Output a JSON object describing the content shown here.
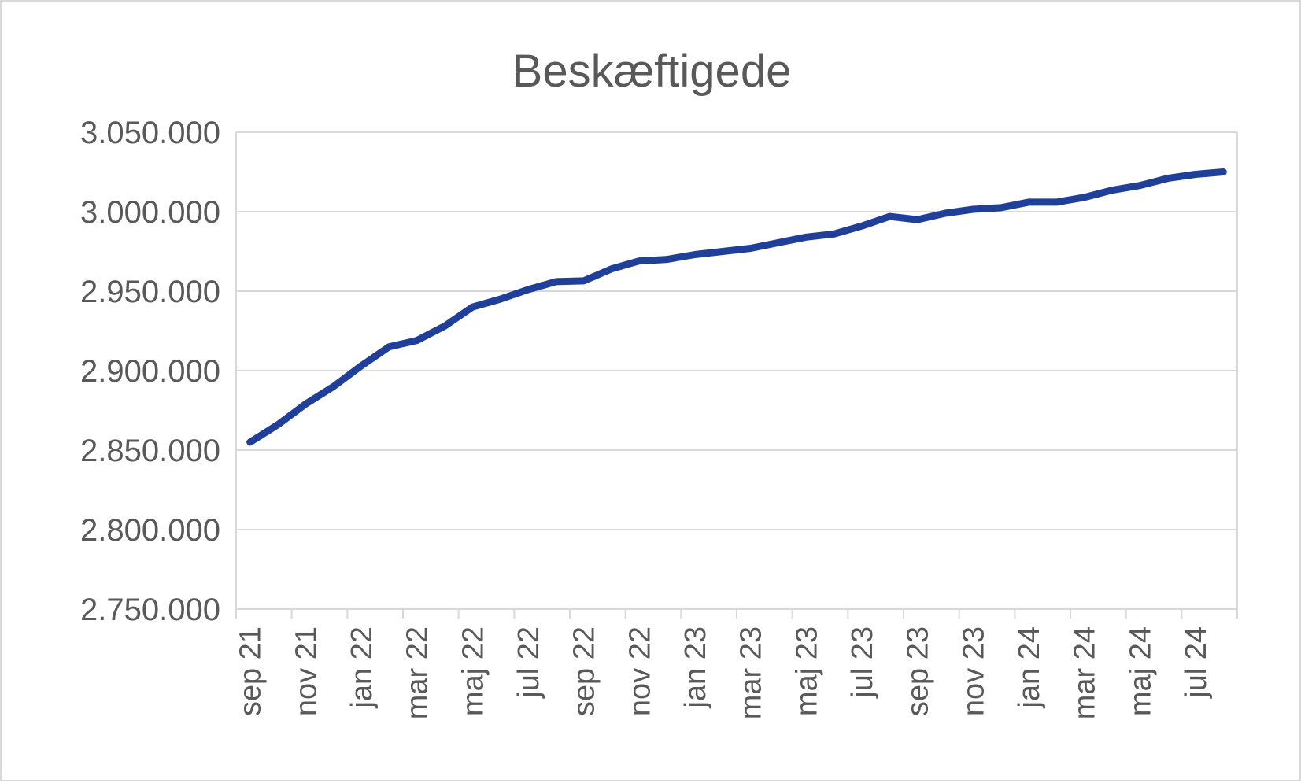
{
  "chart_data": {
    "type": "line",
    "title": "Beskæftigede",
    "xlabel": "",
    "ylabel": "",
    "ylim": [
      2750000,
      3050000
    ],
    "y_ticks": [
      2750000,
      2800000,
      2850000,
      2900000,
      2950000,
      3000000,
      3050000
    ],
    "y_tick_labels": [
      "2.750.000",
      "2.800.000",
      "2.850.000",
      "2.900.000",
      "2.950.000",
      "3.000.000",
      "3.050.000"
    ],
    "x": [
      "sep 21",
      "okt 21",
      "nov 21",
      "dec 21",
      "jan 22",
      "feb 22",
      "mar 22",
      "apr 22",
      "maj 22",
      "jun 22",
      "jul 22",
      "aug 22",
      "sep 22",
      "okt 22",
      "nov 22",
      "dec 22",
      "jan 23",
      "feb 23",
      "mar 23",
      "apr 23",
      "maj 23",
      "jun 23",
      "jul 23",
      "aug 23",
      "sep 23",
      "okt 23",
      "nov 23",
      "dec 23",
      "jan 24",
      "feb 24",
      "mar 24",
      "apr 24",
      "maj 24",
      "jun 24",
      "jul 24",
      "aug 24"
    ],
    "x_tick_labels": [
      "sep 21",
      "nov 21",
      "jan 22",
      "mar 22",
      "maj 22",
      "jul 22",
      "sep 22",
      "nov 22",
      "jan 23",
      "mar 23",
      "maj 23",
      "jul 23",
      "sep 23",
      "nov 23",
      "jan 24",
      "mar 24",
      "maj 24",
      "jul 24"
    ],
    "grid": true,
    "legend": "none",
    "series": [
      {
        "color": "#1f3f99",
        "values": [
          2855000,
          2866000,
          2879000,
          2890000,
          2903000,
          2915000,
          2919000,
          2928000,
          2940000,
          2945000,
          2951000,
          2956000,
          2956500,
          2964000,
          2969000,
          2970000,
          2973000,
          2975000,
          2977000,
          2980500,
          2984000,
          2986000,
          2991000,
          2997000,
          2995000,
          2999000,
          3001500,
          3002500,
          3006000,
          3006000,
          3009000,
          3013500,
          3016500,
          3021000,
          3023500,
          3025000
        ]
      }
    ]
  }
}
